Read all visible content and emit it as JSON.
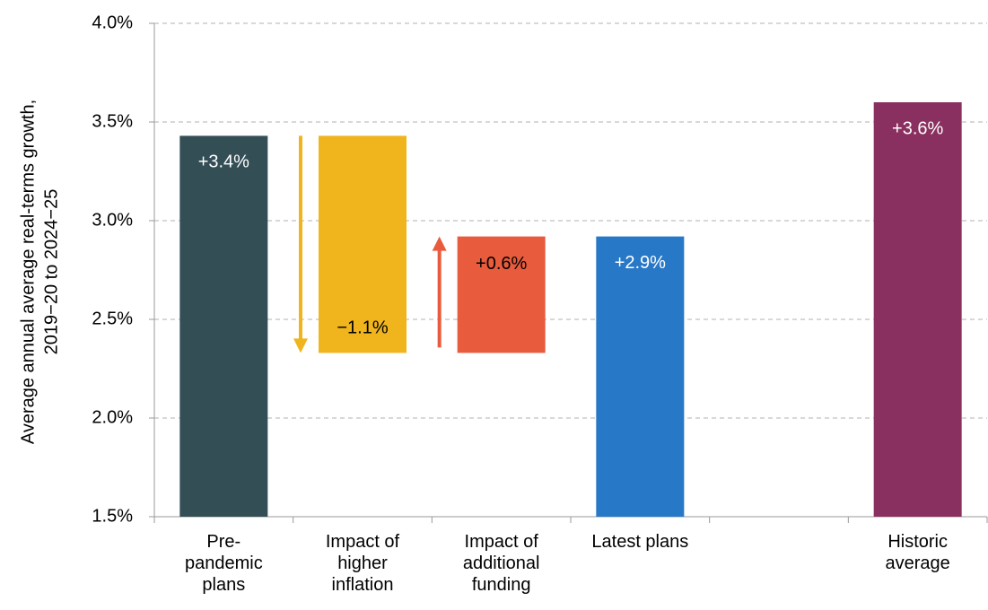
{
  "chart_data": {
    "type": "waterfall",
    "y_label": [
      "Average annual average real-terms growth,",
      "2019−20 to 2024−25"
    ],
    "categories": [
      "Pre-\npandemic\nplans",
      "Impact of\nhigher\ninflation",
      "Impact of\nadditional\nfunding",
      "Latest plans",
      null,
      "Historic\naverage"
    ],
    "measures": [
      "absolute",
      "relative",
      "relative",
      "absolute",
      null,
      "absolute"
    ],
    "values": [
      3.43,
      -1.1,
      0.59,
      2.92,
      null,
      3.6
    ],
    "value_labels": [
      "+3.4%",
      "−1.1%",
      "+0.6%",
      "+2.9%",
      null,
      "+3.6%"
    ],
    "colors": [
      "#344e56",
      "#f0b41c",
      "#e85b3d",
      "#2878c8",
      null,
      "#8a3060"
    ],
    "ylim": [
      1.5,
      4.0
    ],
    "yticks": [
      {
        "value": 1.5,
        "label": "1.5%"
      },
      {
        "value": 2.0,
        "label": "2.0%"
      },
      {
        "value": 2.5,
        "label": "2.5%"
      },
      {
        "value": 3.0,
        "label": "3.0%"
      },
      {
        "value": 3.5,
        "label": "3.5%"
      },
      {
        "value": 4.0,
        "label": "4.0%"
      }
    ],
    "grid": true
  }
}
